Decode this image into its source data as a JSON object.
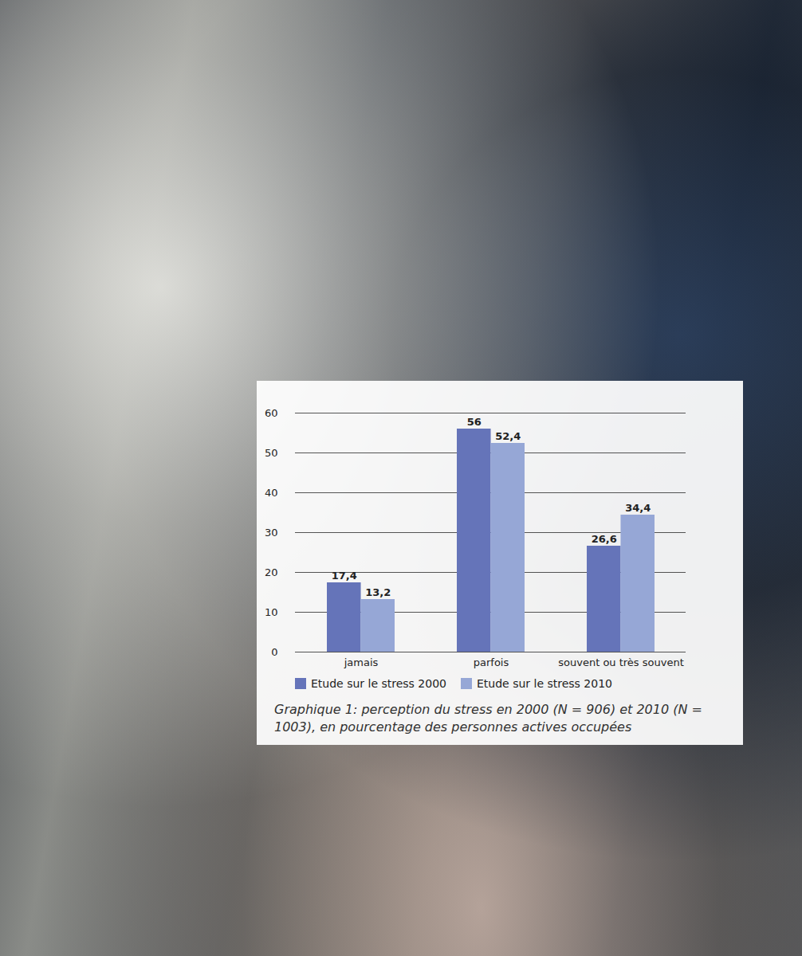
{
  "chart_data": {
    "type": "bar",
    "caption": "Graphique 1: perception du stress en 2000 (N = 906) et 2010 (N = 1003), en pourcentage des personnes actives occupées",
    "categories": [
      "jamais",
      "parfois",
      "souvent ou très souvent"
    ],
    "series": [
      {
        "name": "Etude sur le stress 2000",
        "color": "#6574b9",
        "values": [
          17.4,
          56,
          26.6
        ],
        "value_labels": [
          "17,4",
          "56",
          "26,6"
        ]
      },
      {
        "name": "Etude sur le stress 2010",
        "color": "#96a7d6",
        "values": [
          13.2,
          52.4,
          34.4
        ],
        "value_labels": [
          "13,2",
          "52,4",
          "34,4"
        ]
      }
    ],
    "ylim": [
      0,
      60
    ],
    "yticks": [
      0,
      10,
      20,
      30,
      40,
      50,
      60
    ],
    "grid": true,
    "data_labels": true,
    "legend": "bottom"
  }
}
